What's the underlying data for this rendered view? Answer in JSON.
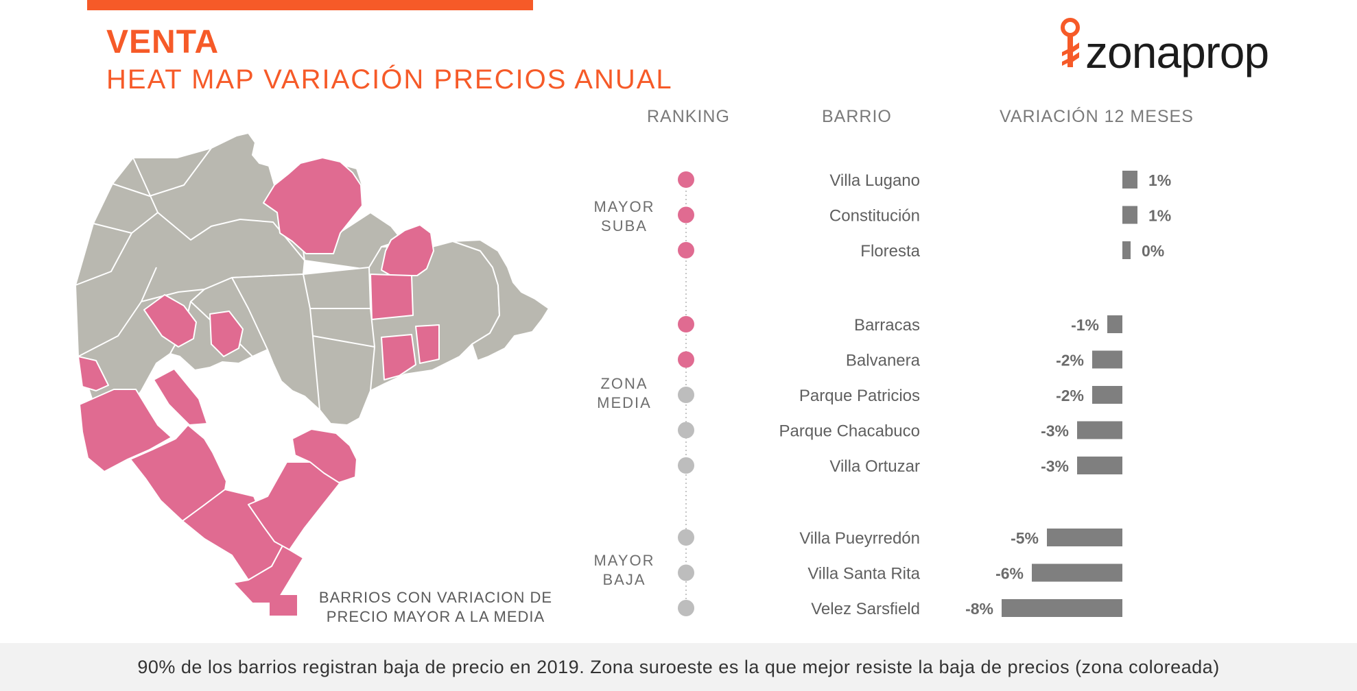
{
  "header": {
    "title": "VENTA",
    "subtitle": "HEAT MAP VARIACIÓN PRECIOS ANUAL",
    "logo_text": "zonaprop"
  },
  "colors": {
    "accent": "#f65a28",
    "highlight": "#e06b91",
    "neutral": "#b9b8b0",
    "bar": "#7f7f7f",
    "dot_gray": "#bdbdbd"
  },
  "columns": {
    "ranking": "RANKING",
    "barrio": "BARRIO",
    "variation": "VARIACIÓN 12 MESES"
  },
  "groups": {
    "top": [
      "MAYOR",
      "SUBA"
    ],
    "middle": [
      "ZONA",
      "MEDIA"
    ],
    "bottom": [
      "MAYOR",
      "BAJA"
    ]
  },
  "legend": {
    "line1": "BARRIOS CON VARIACION DE",
    "line2": "PRECIO MAYOR A LA MEDIA"
  },
  "footer": {
    "text": "90% de los barrios registran baja de precio en 2019. Zona suroeste es la que mejor resiste la baja de precios (zona coloreada)"
  },
  "chart_data": {
    "type": "bar",
    "categories": [
      "Villa Lugano",
      "Constitución",
      "Floresta",
      "Barracas",
      "Balvanera",
      "Parque Patricios",
      "Parque Chacabuco",
      "Villa Ortuzar",
      "Villa Pueyrredón",
      "Villa Santa Rita",
      "Velez Sarsfield"
    ],
    "values": [
      1,
      1,
      0,
      -1,
      -2,
      -2,
      -3,
      -3,
      -5,
      -6,
      -8
    ],
    "labels": [
      "1%",
      "1%",
      "0%",
      "-1%",
      "-2%",
      "-2%",
      "-3%",
      "-3%",
      "-5%",
      "-6%",
      "-8%"
    ],
    "highlighted": [
      true,
      true,
      true,
      true,
      true,
      false,
      false,
      false,
      false,
      false,
      false
    ],
    "groups": [
      "top",
      "top",
      "top",
      "middle",
      "middle",
      "middle",
      "middle",
      "middle",
      "bottom",
      "bottom",
      "bottom"
    ],
    "orientation": "horizontal",
    "xlabel": "VARIACIÓN 12 MESES",
    "ylabel": "BARRIO"
  }
}
